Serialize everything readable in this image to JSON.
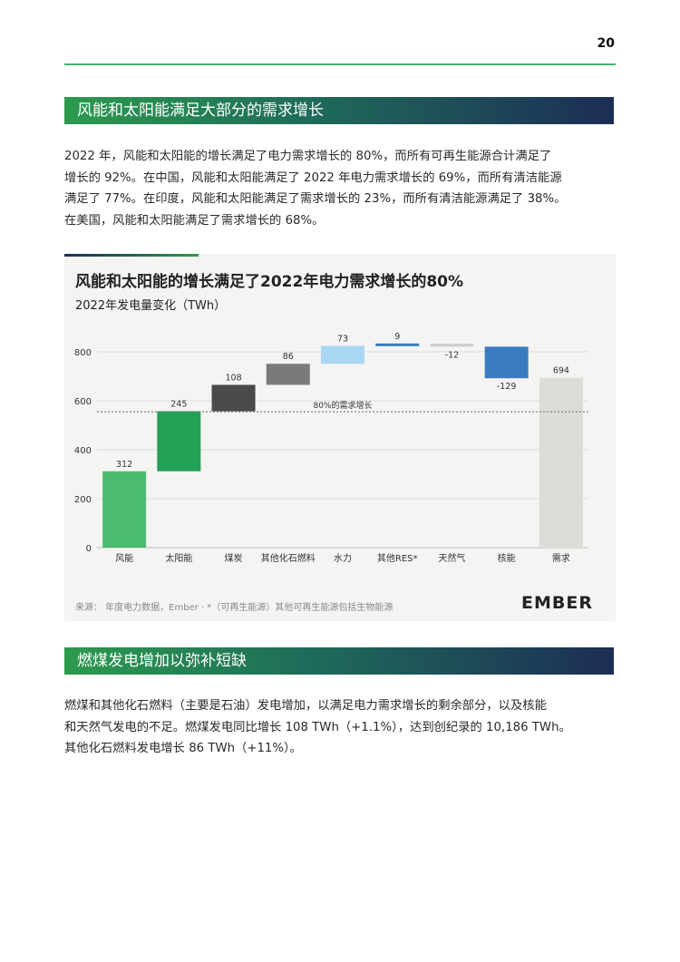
{
  "page_number": "20",
  "section1": {
    "title": "风能和太阳能满足大部分的需求增长",
    "paragraph_lines": [
      "2022 年，风能和太阳能的增长满足了电力需求增长的 80%，而所有可再生能源合计满足了",
      "增长的 92%。在中国，风能和太阳能满足了 2022 年电力需求增长的 69%，而所有清洁能源",
      "满足了 77%。在印度，风能和太阳能满足了需求增长的 23%，而所有清洁能源满足了 38%。",
      "在美国，风能和太阳能满足了需求增长的 68%。"
    ]
  },
  "chart": {
    "source": "来源： 年度电力数据，Ember · *（可再生能源）其他可再生能源包括生物能源",
    "logo_text": "EMBER"
  },
  "section2": {
    "title": "燃煤发电增加以弥补短缺",
    "paragraph_lines": [
      "燃煤和其他化石燃料（主要是石油）发电增加，以满足电力需求增长的剩余部分，以及核能",
      "和天然气发电的不足。燃煤发电同比增长 108 TWh（+1.1%），达到创纪录的 10,186 TWh。",
      "其他化石燃料发电增长 86 TWh（+11%）。"
    ]
  },
  "chart_data": {
    "type": "bar",
    "title": "风能和太阳能的增长满足了2022年电力需求增长的80%",
    "subtitle": "2022年发电量变化（TWh）",
    "categories": [
      "风能",
      "太阳能",
      "煤炭",
      "其他化石燃料",
      "水力",
      "其他RES*",
      "天然气",
      "核能",
      "需求"
    ],
    "values": [
      312,
      245,
      108,
      86,
      73,
      9,
      -12,
      -129,
      694
    ],
    "value_labels": [
      "312",
      "245",
      "108",
      "86",
      "73",
      "9",
      "-12",
      "-129",
      "694"
    ],
    "waterfall": true,
    "colors": [
      "#4cbb72",
      "#22a157",
      "#4a4a4a",
      "#7a7a78",
      "#a9d7f3",
      "#3a7cc0",
      "#cfcfcd",
      "#3a7cc0",
      "#dcdcd8"
    ],
    "ylim": [
      0,
      830
    ],
    "yticks": [
      0,
      200,
      400,
      600,
      800
    ],
    "reference_line": {
      "value": 555.2,
      "label": "80%的需求增长"
    },
    "grid": true
  }
}
